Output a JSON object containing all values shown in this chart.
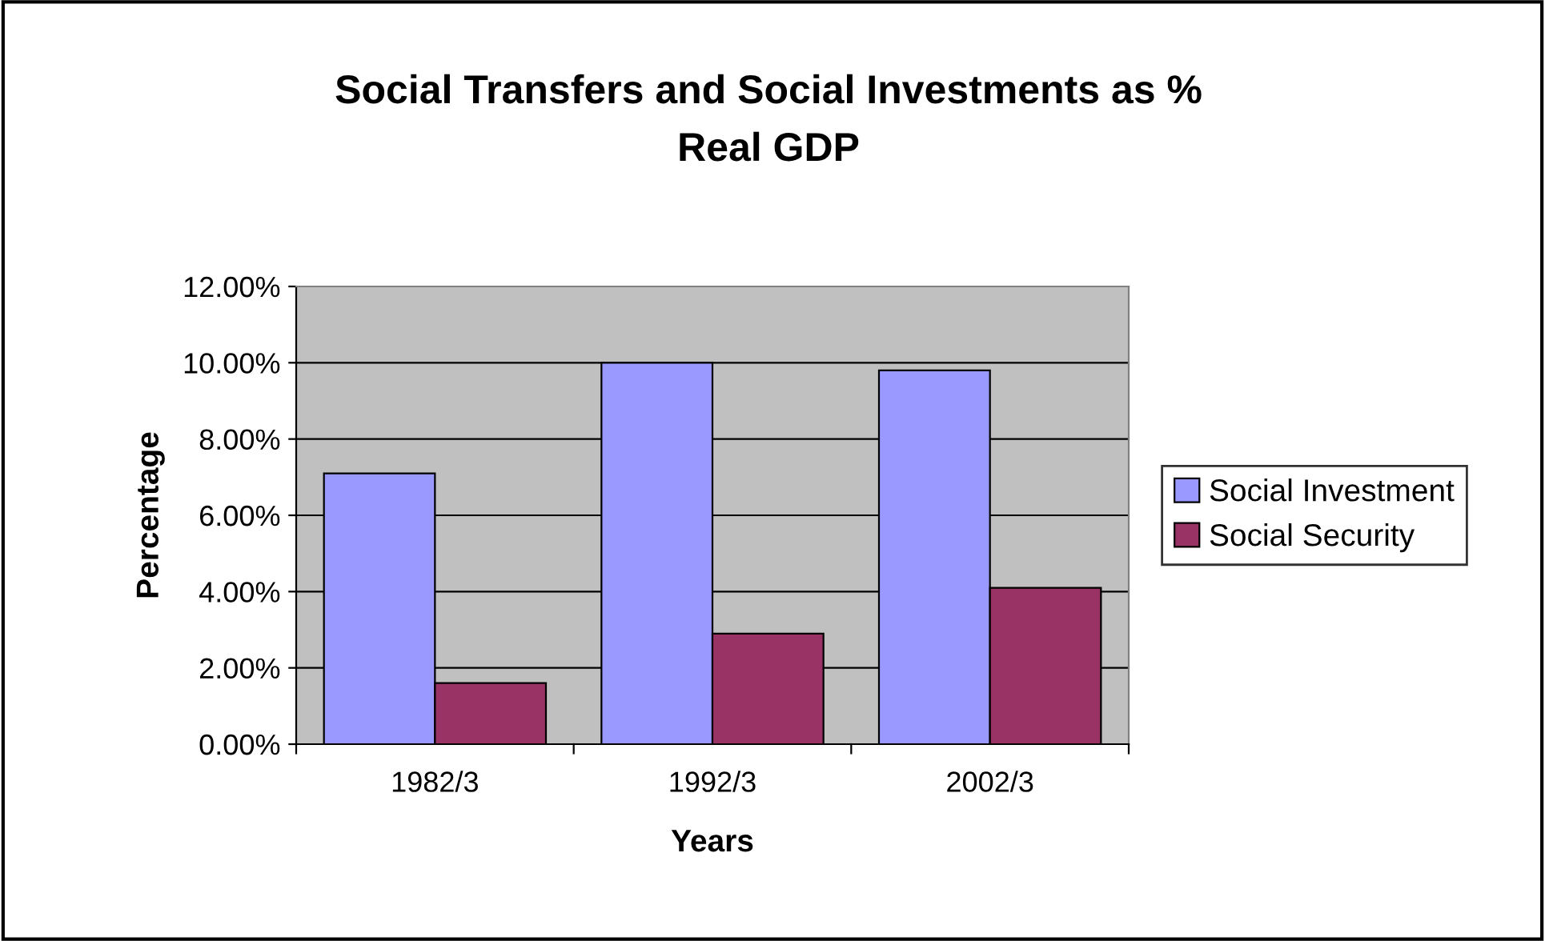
{
  "chart_data": {
    "type": "bar",
    "title": "Social Transfers and Social Investments as %\nReal GDP",
    "xlabel": "Years",
    "ylabel": "Percentage",
    "categories": [
      "1982/3",
      "1992/3",
      "2002/3"
    ],
    "series": [
      {
        "name": "Social Investment",
        "color": "#9999ff",
        "values": [
          7.1,
          10.0,
          9.8
        ]
      },
      {
        "name": "Social Security",
        "color": "#993366",
        "values": [
          1.6,
          2.9,
          4.1
        ]
      }
    ],
    "ylim": [
      0,
      12
    ],
    "yticks": [
      {
        "value": 0,
        "label": "0.00%"
      },
      {
        "value": 2,
        "label": "2.00%"
      },
      {
        "value": 4,
        "label": "4.00%"
      },
      {
        "value": 6,
        "label": "6.00%"
      },
      {
        "value": 8,
        "label": "8.00%"
      },
      {
        "value": 10,
        "label": "10.00%"
      },
      {
        "value": 12,
        "label": "12.00%"
      }
    ],
    "grid": "y",
    "legend": "right"
  }
}
